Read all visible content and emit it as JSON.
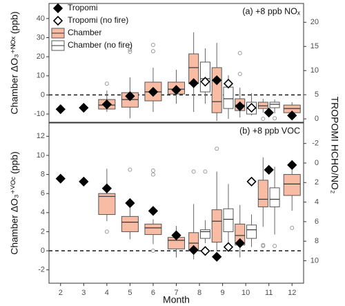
{
  "chart_data": [
    {
      "type": "box",
      "title": "(a) +8 ppb NOₓ",
      "ylabel": "Chamber ΔO₃⁺ᴺᴼˣ (ppb)",
      "y2label": "TROPOMI HCHO/NO₂",
      "xlim": [
        1.5,
        12.5
      ],
      "ylim": [
        -14.3,
        47.9
      ],
      "yticks": [
        -10,
        0,
        10,
        20,
        30,
        40
      ],
      "y2lim": [
        -0.7,
        23.9
      ],
      "y2ticks": [
        0,
        5,
        10,
        15,
        20
      ],
      "hline": 0,
      "legend": "top-left",
      "boxes": [
        {
          "name": "Chamber",
          "color": "#f7bca3",
          "x": [
            4,
            5,
            6,
            7,
            8,
            9,
            10,
            11,
            12
          ],
          "whisker_low": [
            -8.9,
            -12.2,
            -8.9,
            -4.6,
            -8.9,
            -13.6,
            -11.8,
            -9.3,
            -10.7
          ],
          "q1": [
            -7.4,
            -6.4,
            -3.1,
            0.5,
            5.9,
            -9.3,
            -8.2,
            -7.1,
            -9.3
          ],
          "median": [
            -5.3,
            -2.4,
            1.6,
            3.0,
            14.3,
            -3.5,
            -5.3,
            -5.7,
            -7.1
          ],
          "q3": [
            -2.4,
            1.2,
            6.7,
            6.7,
            21.5,
            14.3,
            -2.0,
            -3.8,
            -5.3
          ],
          "whisker_high": [
            2.3,
            9.2,
            14.3,
            13.2,
            32.8,
            27.3,
            3.8,
            -2.0,
            -3.8
          ],
          "outliers": [
            [
              5.9
            ],
            [
              25.5,
              23.7,
              22.6
            ],
            [
              26.2,
              22.9
            ],
            [],
            [],
            [],
            [
              11.0,
              21.9
            ],
            [
              -12.5
            ],
            []
          ]
        },
        {
          "name": "Chamber (no fire)",
          "color": "#ffffff",
          "x": [
            8,
            9,
            10,
            11
          ],
          "whisker_low": [
            -4.6,
            -12.5,
            -10.7,
            -9.6
          ],
          "q1": [
            1.6,
            -7.1,
            -10.0,
            -6.7
          ],
          "median": [
            8.5,
            -2.0,
            -7.1,
            -4.9
          ],
          "q3": [
            17.2,
            4.1,
            -3.8,
            -3.8
          ],
          "whisker_high": [
            24.4,
            10.3,
            0.9,
            -2.4
          ],
          "outliers": [
            [],
            [],
            [],
            [
              -12.2
            ]
          ]
        }
      ],
      "points": [
        {
          "name": "Tropomi",
          "color": "#000000",
          "axis": "y2",
          "x": [
            2,
            3,
            4,
            5,
            6,
            7,
            8,
            9,
            10,
            11,
            12
          ],
          "values": [
            2.0,
            2.3,
            3.0,
            4.7,
            5.6,
            6.0,
            7.4,
            8.0,
            2.6,
            1.3,
            0.7
          ]
        },
        {
          "name": "Tropomi (no fire)",
          "color": "#ffffff",
          "axis": "y2",
          "x": [
            8,
            9,
            10
          ],
          "values": [
            7.7,
            7.3,
            2.3
          ]
        }
      ]
    },
    {
      "type": "box",
      "title": "(b) +8 ppb VOC",
      "ylabel": "Chamber ΔO₃⁺ⱽᴼᶜ (ppb)",
      "xlabel": "Month",
      "xlim": [
        1.5,
        12.5
      ],
      "xticks": [
        2,
        3,
        4,
        5,
        6,
        7,
        8,
        9,
        10,
        11,
        12
      ],
      "ylim": [
        -3.4,
        13.4
      ],
      "yticks": [
        -2,
        0,
        2,
        4,
        6,
        8,
        10,
        12
      ],
      "y2lim": [
        -4.1,
        12.3
      ],
      "y2_reversed": true,
      "y2ticks": [
        -2,
        0,
        2,
        4,
        6,
        8,
        10
      ],
      "hline": 0,
      "boxes": [
        {
          "color": "#f7bca3",
          "x": [
            4,
            5,
            6,
            7,
            8,
            9,
            10,
            11,
            12
          ],
          "whisker_low": [
            3.1,
            1.2,
            0.7,
            -0.7,
            -0.9,
            0.0,
            -0.7,
            2.5,
            4.2
          ],
          "q1": [
            3.8,
            2.0,
            1.7,
            0.2,
            0.0,
            0.9,
            0.6,
            4.6,
            5.8
          ],
          "median": [
            5.7,
            3.0,
            2.4,
            1.1,
            0.8,
            3.1,
            1.6,
            5.4,
            7.0
          ],
          "q3": [
            6.0,
            3.6,
            2.8,
            1.4,
            1.9,
            4.3,
            2.8,
            7.4,
            8.0
          ],
          "whisker_high": [
            8.6,
            4.7,
            3.3,
            2.6,
            4.9,
            8.3,
            4.8,
            9.8,
            9.3
          ],
          "outliers": [
            [
              2.0
            ],
            [
              8.5
            ],
            [
              8.4,
              8.0,
              0.0
            ],
            [],
            [
              8.3
            ],
            [
              10.7
            ],
            [],
            [
              0.5,
              0.6
            ],
            [
              2.4
            ]
          ]
        },
        {
          "color": "#ffffff",
          "x": [
            8,
            9,
            10,
            11
          ],
          "whisker_low": [
            0.8,
            0.7,
            0.4,
            1.7
          ],
          "q1": [
            1.3,
            2.0,
            1.3,
            4.6
          ],
          "median": [
            2.0,
            3.3,
            2.2,
            5.4
          ],
          "q3": [
            2.2,
            4.4,
            2.7,
            6.6
          ],
          "whisker_high": [
            3.2,
            7.0,
            3.8,
            8.8
          ],
          "outliers": [
            [
              8.3
            ],
            [],
            [],
            [
              0.5
            ]
          ]
        }
      ],
      "points": [
        {
          "color": "#000000",
          "axis": "y2",
          "x": [
            2,
            3,
            4,
            5,
            6,
            7,
            8,
            9,
            10,
            11,
            12
          ],
          "values": [
            1.6,
            1.9,
            2.6,
            4.1,
            4.9,
            7.4,
            8.9,
            9.6,
            8.2,
            0.7,
            0.2
          ]
        },
        {
          "color": "#ffffff",
          "axis": "y2",
          "x": [
            8,
            9,
            10
          ],
          "values": [
            9.0,
            8.6,
            1.9
          ]
        }
      ]
    }
  ]
}
